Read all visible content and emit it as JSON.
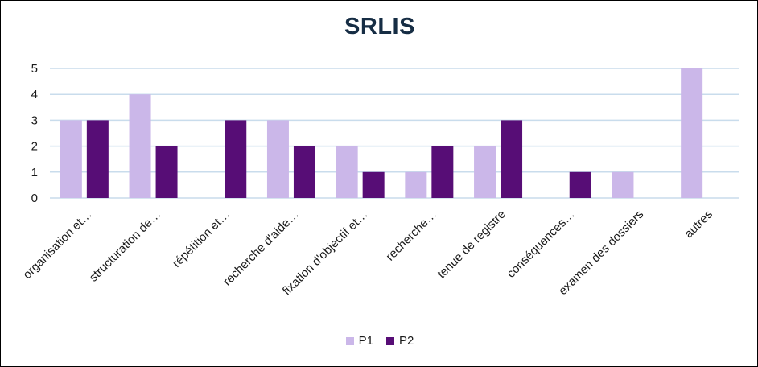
{
  "chart_data": {
    "type": "bar",
    "title": "SRLIS",
    "categories": [
      "organisation et…",
      "structuration de…",
      "répétition et…",
      "recherche d'aide…",
      "fixation d'objectif et…",
      "recherche…",
      "tenue de registre",
      "conséquences…",
      "examen des dossiers",
      "autres"
    ],
    "series": [
      {
        "name": "P1",
        "color": "#cbb7e9",
        "values": [
          3,
          4,
          0,
          3,
          2,
          1,
          2,
          0,
          1,
          5
        ]
      },
      {
        "name": "P2",
        "color": "#570d76",
        "values": [
          3,
          2,
          3,
          2,
          1,
          2,
          3,
          1,
          0,
          0
        ]
      }
    ],
    "yticks": [
      "0",
      "1",
      "2",
      "3",
      "4",
      "5"
    ],
    "ylim": [
      0,
      5
    ],
    "grid": true,
    "legend_position": "bottom"
  }
}
